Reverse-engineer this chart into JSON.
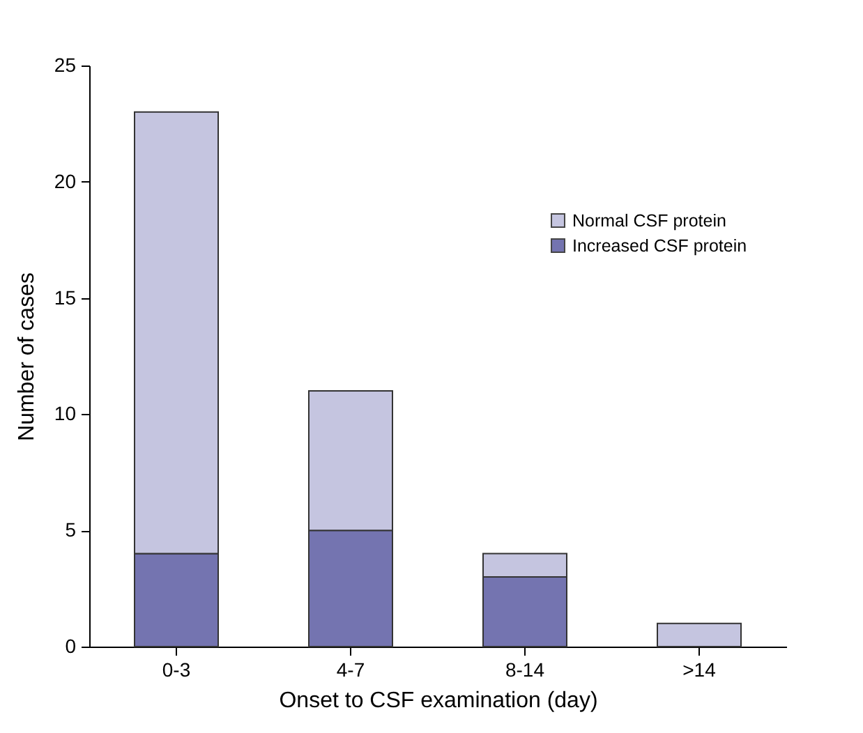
{
  "chart_data": {
    "type": "bar",
    "stacked": true,
    "xlabel": "Onset to CSF examination (day)",
    "ylabel": "Number of cases",
    "categories": [
      "0-3",
      "4-7",
      "8-14",
      ">14"
    ],
    "series": [
      {
        "name": "Increased CSF protein",
        "color": "#7474b0",
        "values": [
          4,
          5,
          3,
          0
        ]
      },
      {
        "name": "Normal CSF protein",
        "color": "#c5c5e0",
        "values": [
          19,
          6,
          1,
          1
        ]
      }
    ],
    "ylim": [
      0,
      25
    ],
    "yticks": [
      0,
      5,
      10,
      15,
      20,
      25
    ],
    "legend": "top right",
    "grid": false
  }
}
